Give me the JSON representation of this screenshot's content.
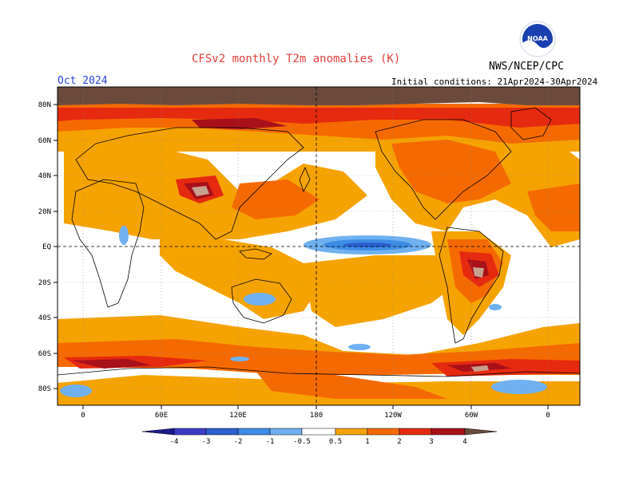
{
  "header": {
    "title": "CFSv2 monthly T2m anomalies (K)",
    "organization": "NWS/NCEP/CPC",
    "valid_month": "Oct 2024",
    "initial_conditions": "Initial conditions: 21Apr2024-30Apr2024",
    "logo_text": "NOAA"
  },
  "map": {
    "lat_labels": [
      "80N",
      "60N",
      "40N",
      "20N",
      "EQ",
      "20S",
      "40S",
      "60S",
      "80S"
    ],
    "lon_labels": [
      "0",
      "60E",
      "120E",
      "180",
      "120W",
      "60W",
      "0"
    ]
  },
  "legend": {
    "ticks": [
      "-4",
      "-3",
      "-2",
      "-1",
      "-0.5",
      "0.5",
      "1",
      "2",
      "3",
      "4"
    ],
    "colors": [
      "#1a1a8c",
      "#3b3bc8",
      "#2a5fd0",
      "#3d8ce6",
      "#6fb1f0",
      "#ffffff",
      "#f5a300",
      "#f56a00",
      "#e62a10",
      "#a8101a",
      "#c8a090",
      "#6b4a3c"
    ]
  }
}
